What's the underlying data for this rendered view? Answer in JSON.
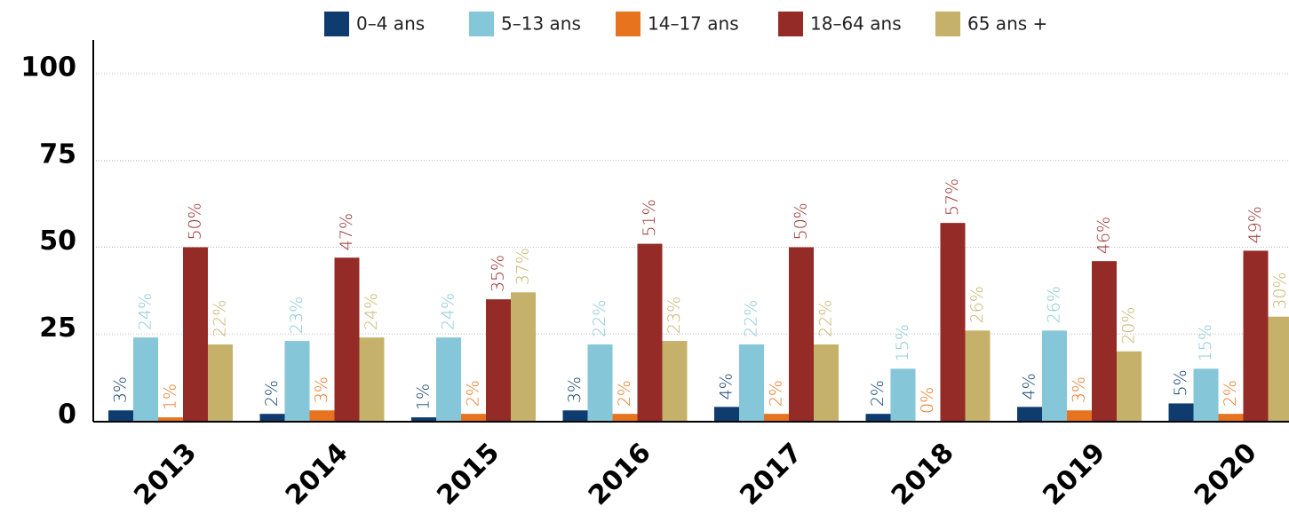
{
  "chart_data": {
    "type": "bar",
    "categories": [
      "2013",
      "2014",
      "2015",
      "2016",
      "2017",
      "2018",
      "2019",
      "2020"
    ],
    "series": [
      {
        "name": "0–4 ans",
        "color": "#0e3c6e",
        "values": [
          3,
          2,
          1,
          3,
          4,
          2,
          4,
          5
        ],
        "value_labels": [
          "3%",
          "2%",
          "1%",
          "3%",
          "4%",
          "2%",
          "4%",
          "5%"
        ]
      },
      {
        "name": "5–13 ans",
        "color": "#86c6d9",
        "values": [
          24,
          23,
          24,
          22,
          22,
          15,
          26,
          15
        ],
        "value_labels": [
          "24%",
          "23%",
          "24%",
          "22%",
          "22%",
          "15%",
          "26%",
          "15%"
        ]
      },
      {
        "name": "14–17 ans",
        "color": "#e8731e",
        "values": [
          1,
          3,
          2,
          2,
          2,
          0,
          3,
          2
        ],
        "value_labels": [
          "1%",
          "3%",
          "2%",
          "2%",
          "2%",
          "0%",
          "3%",
          "2%"
        ]
      },
      {
        "name": "18–64 ans",
        "color": "#952b27",
        "values": [
          50,
          47,
          35,
          51,
          50,
          57,
          46,
          49
        ],
        "value_labels": [
          "50%",
          "47%",
          "35%",
          "51%",
          "50%",
          "57%",
          "46%",
          "49%"
        ]
      },
      {
        "name": "65 ans +",
        "color": "#c6b16a",
        "values": [
          22,
          24,
          37,
          23,
          22,
          26,
          20,
          30
        ],
        "value_labels": [
          "22%",
          "24%",
          "37%",
          "23%",
          "22%",
          "26%",
          "20%",
          "30%"
        ]
      }
    ],
    "ylim": [
      0,
      100
    ],
    "yticks": [
      0,
      25,
      50,
      75,
      100
    ],
    "grid": true,
    "legend": "top"
  }
}
